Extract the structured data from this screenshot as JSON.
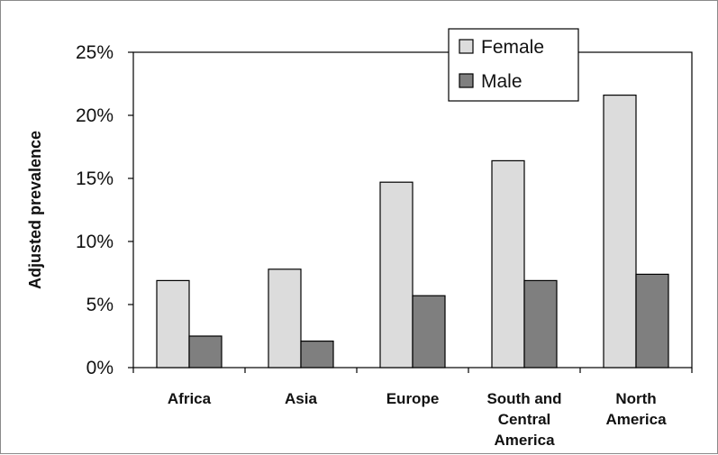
{
  "chart_data": {
    "type": "bar",
    "title": "",
    "xlabel": "",
    "ylabel": "Adjusted prevalence",
    "categories": [
      "Africa",
      "Asia",
      "Europe",
      "South and Central America",
      "North America"
    ],
    "category_lines": [
      [
        "Africa"
      ],
      [
        "Asia"
      ],
      [
        "Europe"
      ],
      [
        "South and",
        "Central",
        "America"
      ],
      [
        "North",
        "America"
      ]
    ],
    "series": [
      {
        "name": "Female",
        "values": [
          6.9,
          7.8,
          14.7,
          16.4,
          21.6
        ],
        "color": "#dcdcdc"
      },
      {
        "name": "Male",
        "values": [
          2.5,
          2.1,
          5.7,
          6.9,
          7.4
        ],
        "color": "#7f7f7f"
      }
    ],
    "ylim": [
      0,
      25
    ],
    "yticks": [
      0,
      5,
      10,
      15,
      20,
      25
    ],
    "ytick_labels": [
      "0%",
      "5%",
      "10%",
      "15%",
      "20%",
      "25%"
    ],
    "legend_position": "top-right",
    "grid": false
  }
}
